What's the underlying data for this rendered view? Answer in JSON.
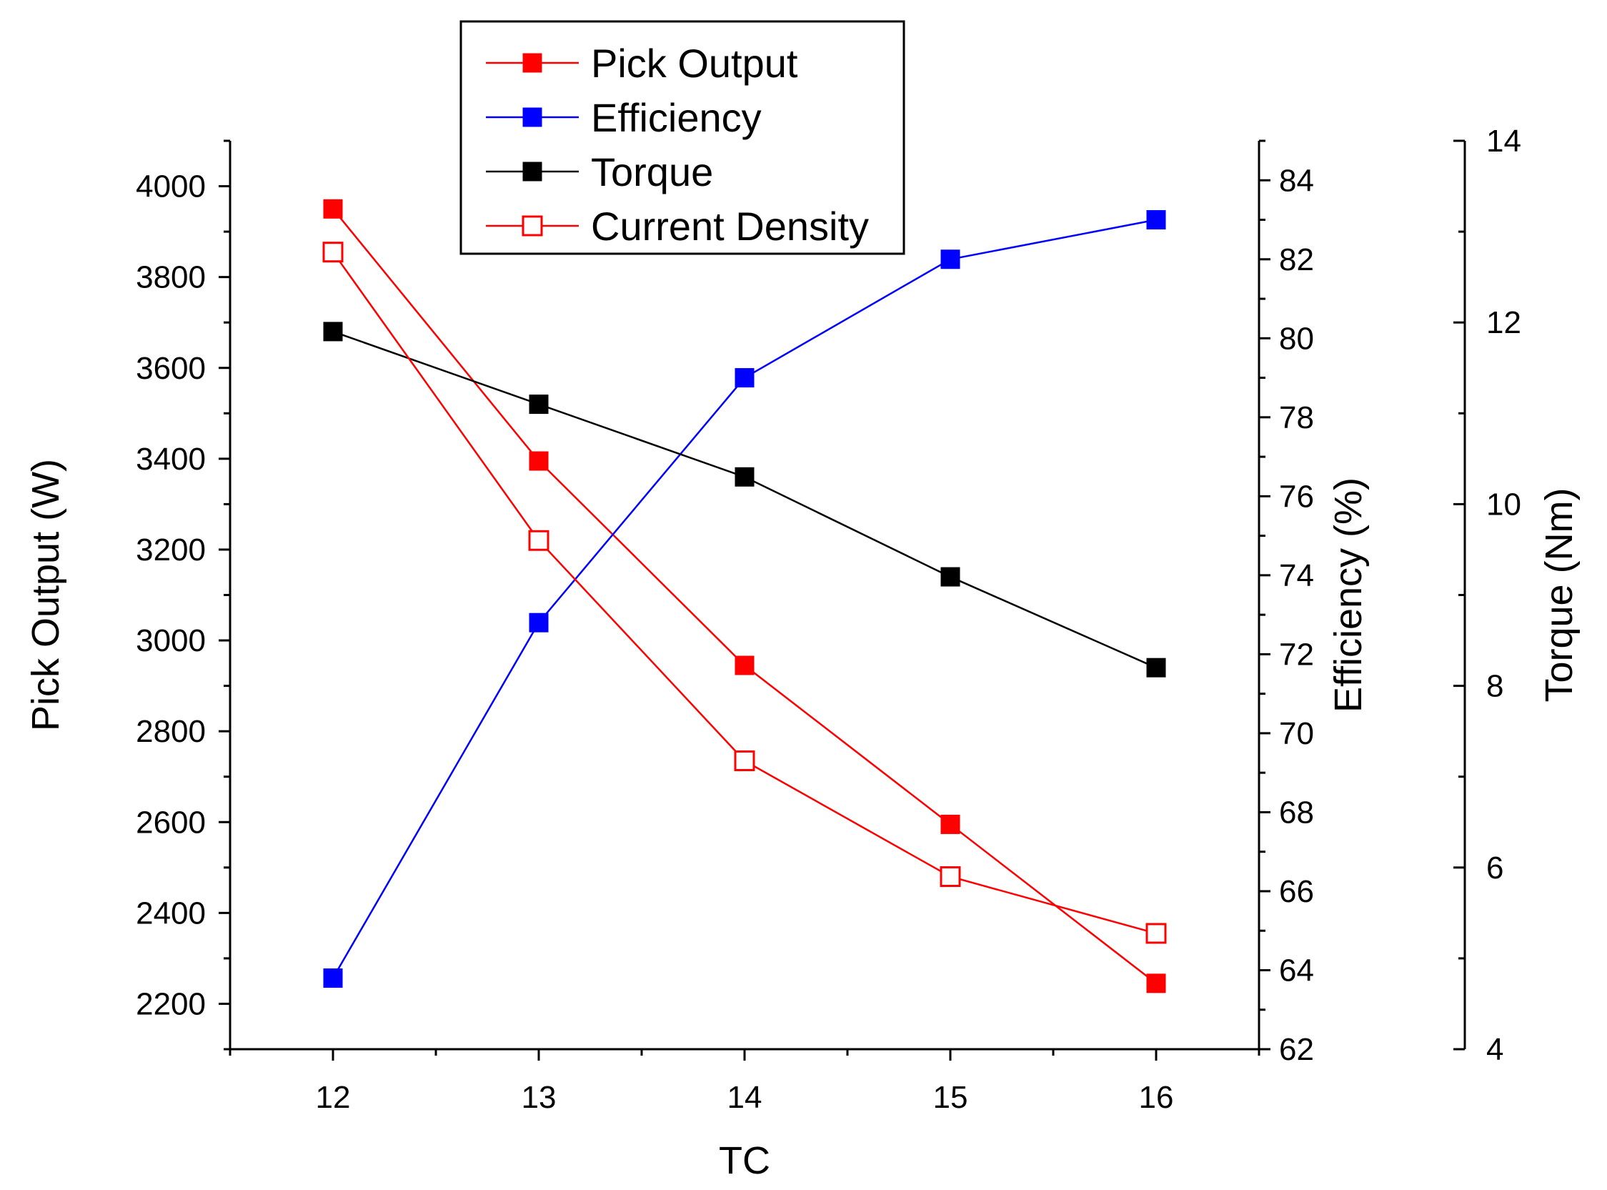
{
  "chart_data": {
    "type": "line",
    "title": "",
    "xlabel": "TC",
    "x": [
      12,
      13,
      14,
      15,
      16
    ],
    "xlim": [
      11.5,
      16.5
    ],
    "xticks": [
      12,
      13,
      14,
      15,
      16
    ],
    "grid": false,
    "legend_position": "top-center",
    "axes": {
      "left": {
        "label": "Pick Output (W)",
        "ylim": [
          2100,
          4100
        ],
        "ticks": [
          2200,
          2400,
          2600,
          2800,
          3000,
          3200,
          3400,
          3600,
          3800,
          4000
        ]
      },
      "right1": {
        "label": "Efficiency (%)",
        "ylim": [
          62,
          85
        ],
        "ticks": [
          62,
          64,
          66,
          68,
          70,
          72,
          74,
          76,
          78,
          80,
          82,
          84
        ]
      },
      "right2": {
        "label": "Torque (Nm)",
        "ylim": [
          4,
          14
        ],
        "ticks": [
          4,
          6,
          8,
          10,
          12,
          14
        ]
      }
    },
    "series": [
      {
        "name": "Pick Output",
        "axis": "left",
        "color": "#ff0000",
        "marker": "filled-square",
        "values": [
          3950,
          3395,
          2945,
          2595,
          2245
        ]
      },
      {
        "name": "Efficiency",
        "axis": "right1",
        "color": "#0000ff",
        "marker": "filled-square",
        "values": [
          63.8,
          72.8,
          79.0,
          82.0,
          83.0
        ]
      },
      {
        "name": "Torque",
        "axis": "right2",
        "color": "#000000",
        "marker": "filled-square",
        "values": [
          11.9,
          11.1,
          10.3,
          9.2,
          8.2
        ]
      },
      {
        "name": "Current Density",
        "axis": "left",
        "color": "#ff0000",
        "marker": "open-square",
        "values": [
          3855,
          3220,
          2735,
          2480,
          2355
        ]
      }
    ]
  }
}
